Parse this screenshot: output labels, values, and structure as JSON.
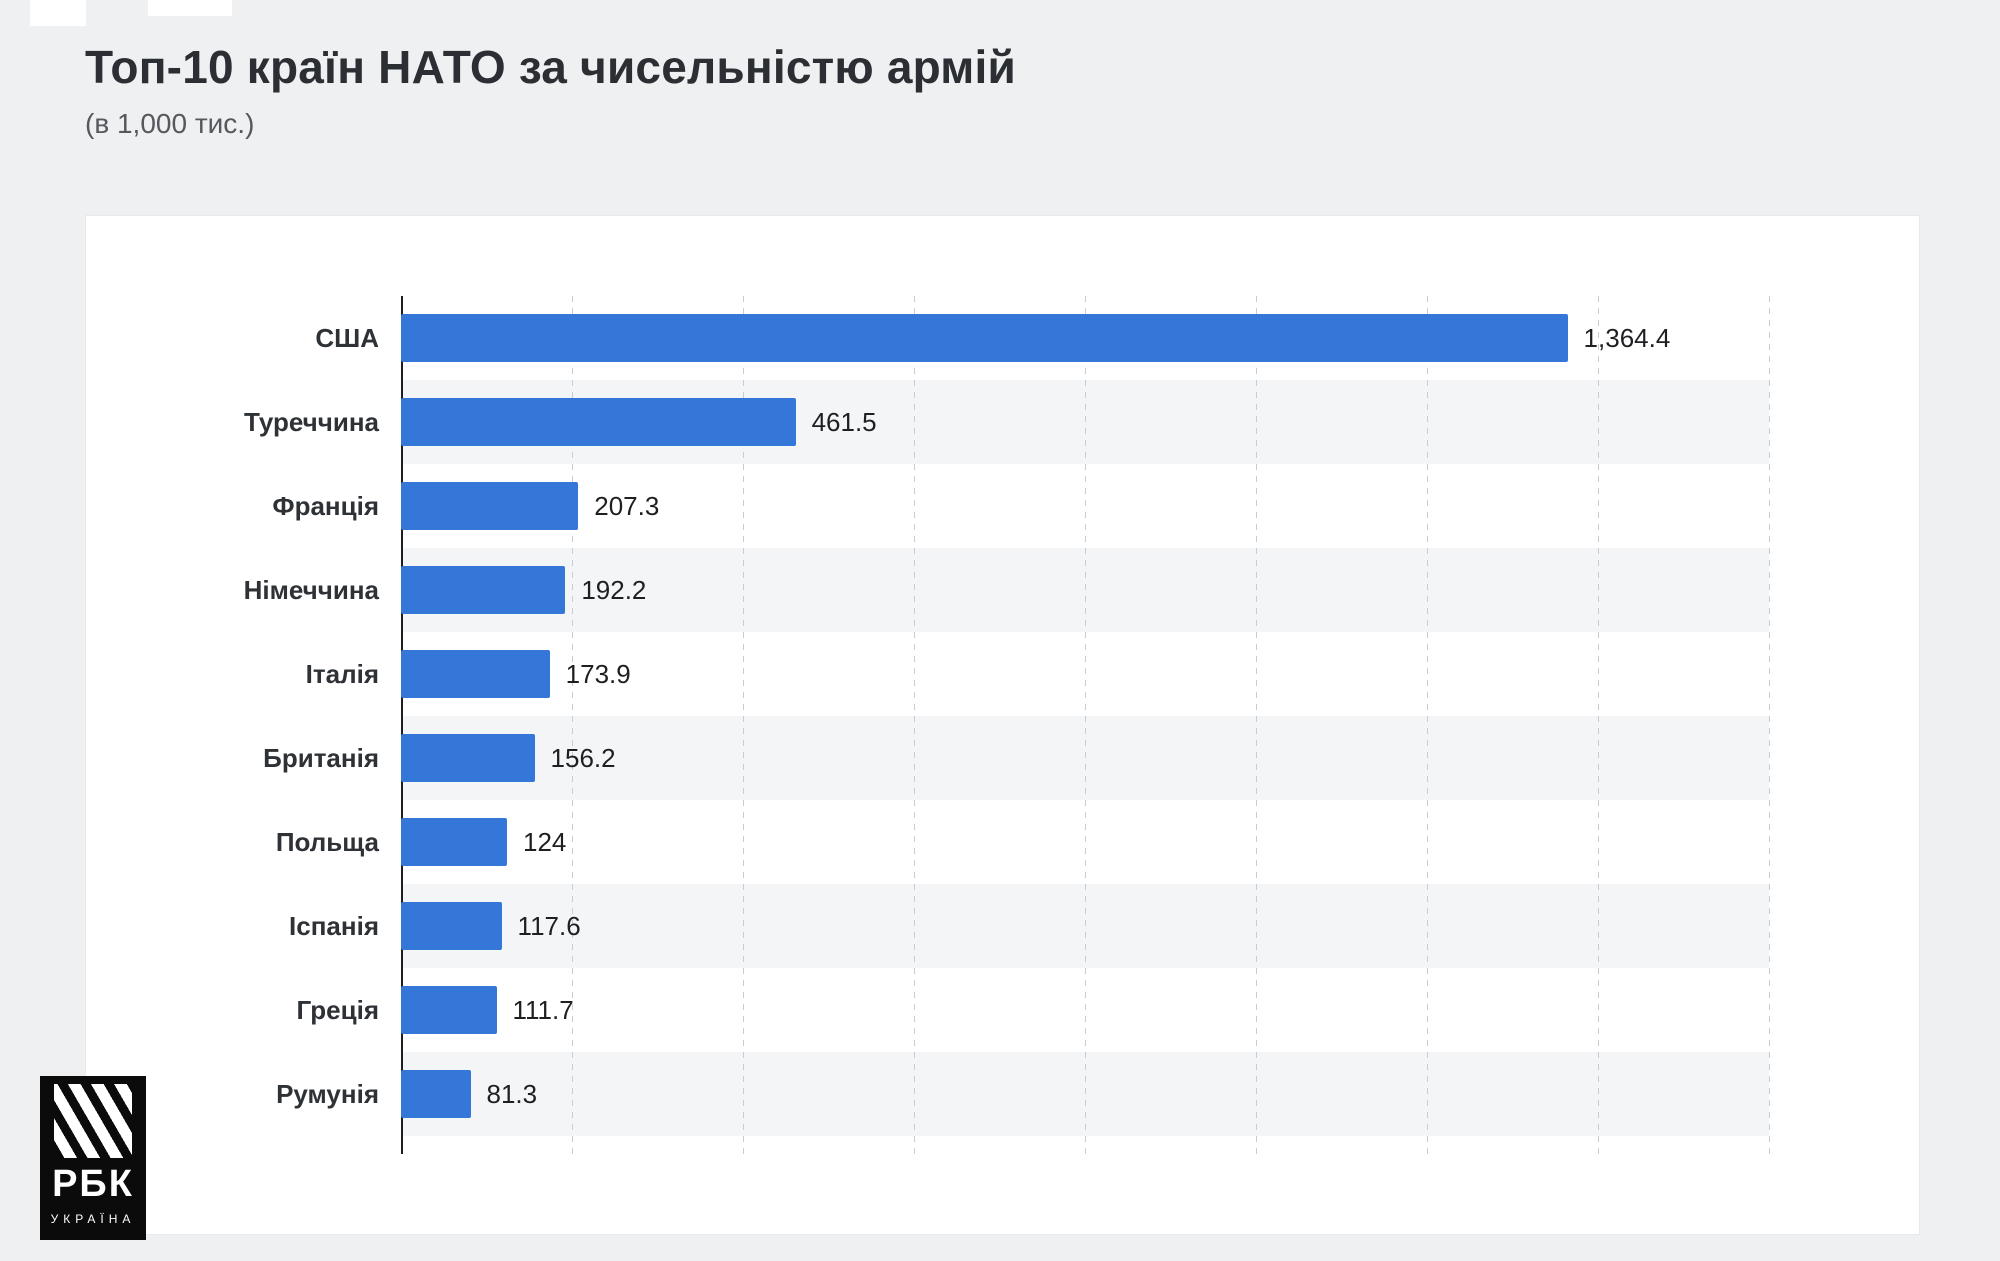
{
  "page": {
    "title": "Топ-10 країн НАТО за чисельністю армій",
    "subtitle": "(в 1,000 тис.)"
  },
  "logo": {
    "brand": "РБК",
    "region": "УКРАЇНА"
  },
  "chart_data": {
    "type": "bar",
    "orientation": "horizontal",
    "title": "Топ-10 країн НАТО за чисельністю армій",
    "subtitle": "(в 1,000 тис.)",
    "categories": [
      "США",
      "Туреччина",
      "Франція",
      "Німеччина",
      "Італія",
      "Британія",
      "Польща",
      "Іспанія",
      "Греція",
      "Румунія"
    ],
    "values": [
      1364.4,
      461.5,
      207.3,
      192.2,
      173.9,
      156.2,
      124,
      117.6,
      111.7,
      81.3
    ],
    "value_labels": [
      "1,364.4",
      "461.5",
      "207.3",
      "192.2",
      "173.9",
      "156.2",
      "124",
      "117.6",
      "111.7",
      "81.3"
    ],
    "xlabel": "",
    "ylabel": "",
    "xlim": [
      0,
      1600
    ],
    "gridline_step": 200,
    "grid": "dashed-vertical",
    "legend": "none",
    "bar_color": "#3577d9",
    "stripe_color": "#f4f5f6",
    "background_color": "#eef0f1",
    "card_color": "#ffffff"
  }
}
